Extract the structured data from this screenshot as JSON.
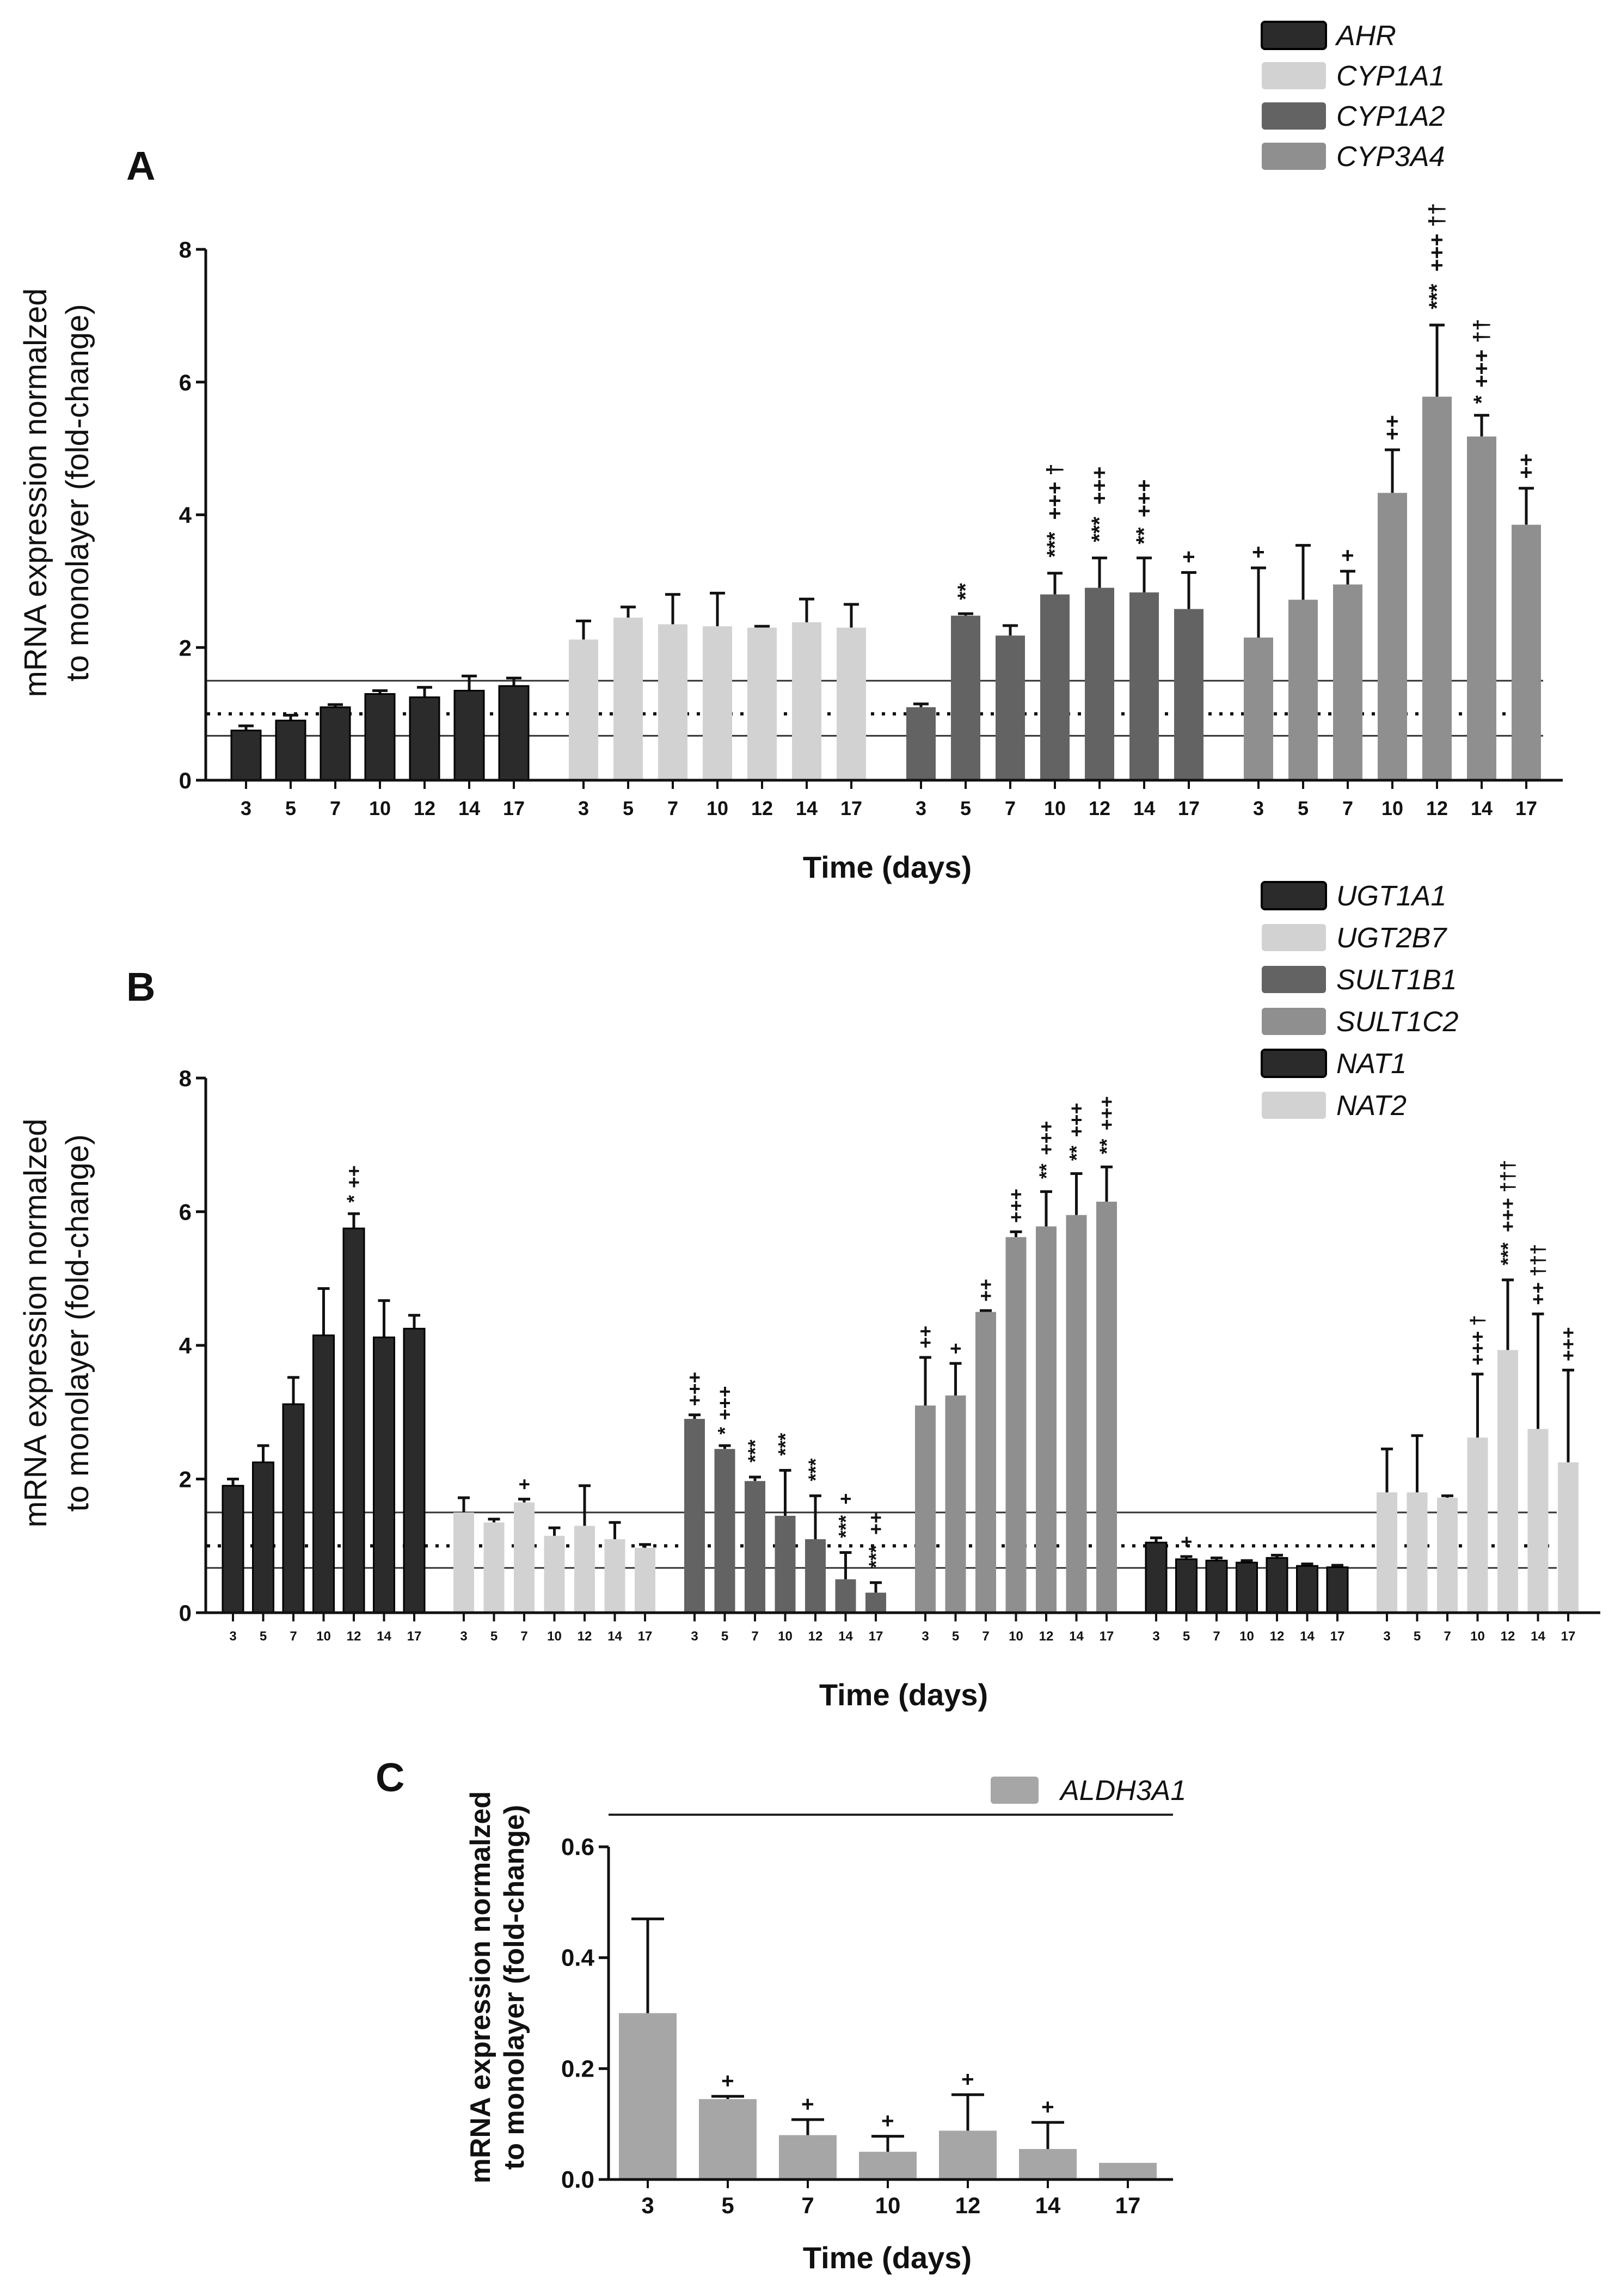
{
  "figure": {
    "panels": [
      "A",
      "B",
      "C"
    ],
    "ylabel_line1": "mRNA expression normalzed",
    "ylabel_line2": "to monolayer (fold-change)",
    "xlabel": "Time (days)"
  },
  "colors": {
    "black": "#2b2b2b",
    "light": "#d2d2d2",
    "dark": "#636363",
    "medium": "#8f8f8f",
    "panel_c": "#a6a6a6"
  },
  "chart_data": [
    {
      "panel": "A",
      "type": "bar",
      "title": "",
      "xlabel": "Time (days)",
      "ylabel": "mRNA expression normalzed to monolayer (fold-change)",
      "ylim": [
        0,
        8
      ],
      "yticks": [
        0,
        2,
        4,
        6,
        8
      ],
      "categories": [
        "3",
        "5",
        "7",
        "10",
        "12",
        "14",
        "17"
      ],
      "reference_lines": {
        "dotted": 1.0,
        "solid": [
          0.67,
          1.5
        ]
      },
      "series": [
        {
          "name": "AHR",
          "color": "#2b2b2b",
          "values": [
            0.75,
            0.9,
            1.1,
            1.3,
            1.25,
            1.35,
            1.42
          ],
          "errors": [
            0.07,
            0.08,
            0.04,
            0.05,
            0.15,
            0.22,
            0.12
          ],
          "significance": [
            "",
            "",
            "",
            "",
            "",
            "",
            ""
          ]
        },
        {
          "name": "CYP1A1",
          "color": "#d2d2d2",
          "values": [
            2.12,
            2.45,
            2.35,
            2.32,
            2.3,
            2.38,
            2.3
          ],
          "errors": [
            0.28,
            0.16,
            0.45,
            0.5,
            0.02,
            0.35,
            0.35
          ],
          "significance": [
            "",
            "",
            "",
            "",
            "",
            "",
            ""
          ]
        },
        {
          "name": "CYP1A2",
          "color": "#636363",
          "values": [
            1.1,
            2.48,
            2.18,
            2.8,
            2.9,
            2.83,
            2.58
          ],
          "errors": [
            0.05,
            0.03,
            0.15,
            0.32,
            0.45,
            0.52,
            0.55
          ],
          "significance": [
            "",
            "**",
            "",
            "***|+++|†",
            "***|+++",
            "**|+++",
            "+"
          ]
        },
        {
          "name": "CYP3A4",
          "color": "#8f8f8f",
          "values": [
            2.15,
            2.72,
            2.95,
            4.33,
            5.78,
            5.18,
            3.85
          ],
          "errors": [
            1.05,
            0.82,
            0.2,
            0.65,
            1.08,
            0.32,
            0.55
          ],
          "significance": [
            "+",
            "",
            "+",
            "++",
            "***|+++|††",
            "*|+++|††",
            "++"
          ]
        }
      ]
    },
    {
      "panel": "B",
      "type": "bar",
      "title": "",
      "xlabel": "Time (days)",
      "ylabel": "mRNA expression normalzed to monolayer (fold-change)",
      "ylim": [
        0,
        8
      ],
      "yticks": [
        0,
        2,
        4,
        6,
        8
      ],
      "categories": [
        "3",
        "5",
        "7",
        "10",
        "12",
        "14",
        "17"
      ],
      "reference_lines": {
        "dotted": 1.0,
        "solid": [
          0.67,
          1.5
        ]
      },
      "series": [
        {
          "name": "UGT1A1",
          "color": "#2b2b2b",
          "values": [
            1.9,
            2.25,
            3.12,
            4.15,
            5.75,
            4.12,
            4.25
          ],
          "errors": [
            0.1,
            0.25,
            0.4,
            0.7,
            0.22,
            0.55,
            0.2
          ],
          "significance": [
            "",
            "",
            "",
            "",
            "*|++",
            "",
            ""
          ]
        },
        {
          "name": "UGT2B7",
          "color": "#d2d2d2",
          "values": [
            1.5,
            1.35,
            1.65,
            1.15,
            1.3,
            1.1,
            0.97
          ],
          "errors": [
            0.22,
            0.05,
            0.05,
            0.12,
            0.6,
            0.25,
            0.05
          ],
          "significance": [
            "",
            "",
            "+",
            "",
            "",
            "",
            ""
          ]
        },
        {
          "name": "SULT1B1",
          "color": "#636363",
          "values": [
            2.9,
            2.45,
            1.97,
            1.45,
            1.1,
            0.5,
            0.3
          ],
          "errors": [
            0.06,
            0.05,
            0.06,
            0.68,
            0.65,
            0.4,
            0.15
          ],
          "significance": [
            "+++",
            "*|+++",
            "***",
            "***",
            "***",
            "***|+",
            "***|++"
          ]
        },
        {
          "name": "SULT1C2",
          "color": "#8f8f8f",
          "values": [
            3.1,
            3.25,
            4.5,
            5.62,
            5.78,
            5.95,
            6.15
          ],
          "errors": [
            0.72,
            0.48,
            0.02,
            0.08,
            0.52,
            0.62,
            0.52
          ],
          "significance": [
            "++",
            "+",
            "++",
            "+++",
            "**|+++",
            "**|+++",
            "**|+++"
          ]
        },
        {
          "name": "NAT1",
          "color": "#2b2b2b",
          "values": [
            1.05,
            0.8,
            0.78,
            0.75,
            0.82,
            0.7,
            0.68
          ],
          "errors": [
            0.07,
            0.04,
            0.04,
            0.03,
            0.04,
            0.03,
            0.03
          ],
          "significance": [
            "",
            "+",
            "",
            "",
            "",
            "",
            ""
          ]
        },
        {
          "name": "NAT2",
          "color": "#d2d2d2",
          "values": [
            1.8,
            1.8,
            1.72,
            2.62,
            3.93,
            2.75,
            2.25
          ],
          "errors": [
            0.65,
            0.85,
            0.03,
            0.95,
            1.05,
            1.72,
            1.38
          ],
          "significance": [
            "",
            "",
            "",
            "+++|†",
            "***|+++|†††",
            "++|†††",
            "+++"
          ]
        }
      ]
    },
    {
      "panel": "C",
      "type": "bar",
      "title": "",
      "xlabel": "Time (days)",
      "ylabel": "mRNA expression normalzed to monolayer (fold-change)",
      "ylim": [
        0,
        0.6
      ],
      "yticks": [
        "0.0",
        "0.2",
        "0.4",
        "0.6"
      ],
      "categories": [
        "3",
        "5",
        "7",
        "10",
        "12",
        "14",
        "17"
      ],
      "series": [
        {
          "name": "ALDH3A1",
          "color": "#a6a6a6",
          "values": [
            0.3,
            0.145,
            0.08,
            0.05,
            0.088,
            0.055,
            0.03
          ],
          "errors": [
            0.17,
            0.005,
            0.028,
            0.028,
            0.065,
            0.048,
            0.0
          ],
          "significance": [
            "",
            "+",
            "+",
            "+",
            "+",
            "+",
            ""
          ]
        }
      ]
    }
  ]
}
